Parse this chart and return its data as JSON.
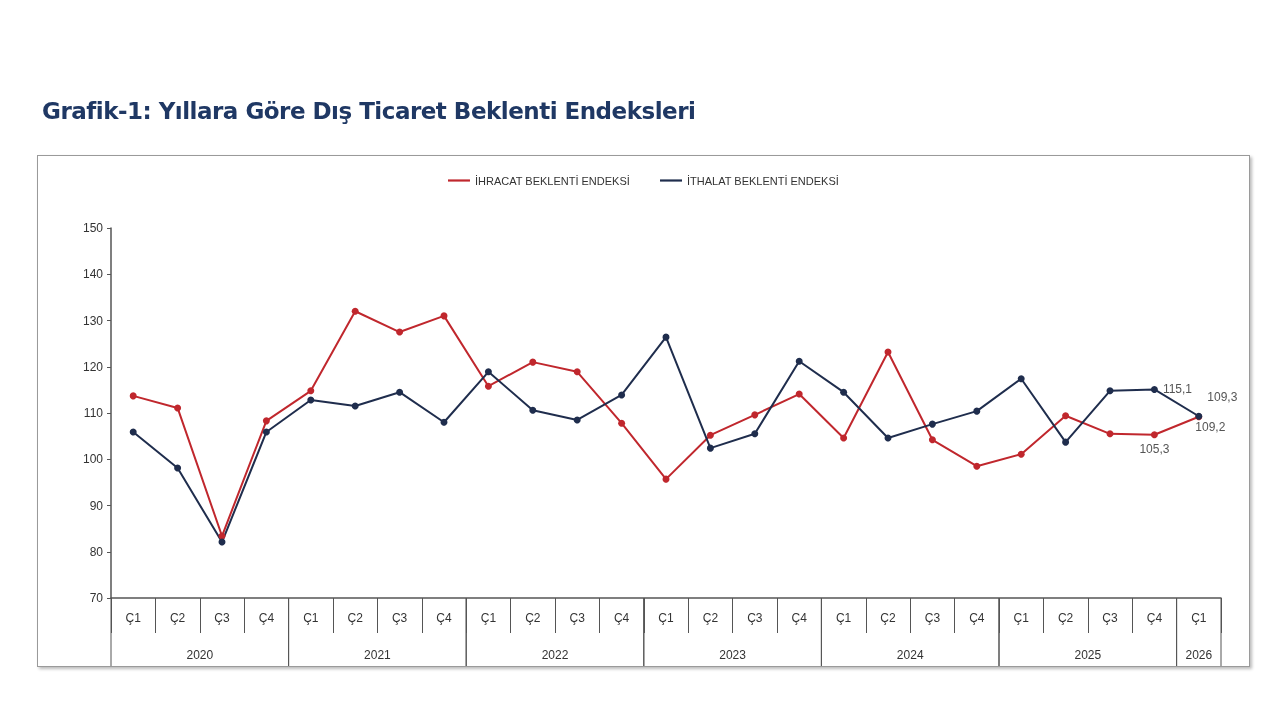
{
  "chart_data": {
    "type": "line",
    "title": "Grafik-1: Yıllara Göre Dış Ticaret Beklenti Endeksleri",
    "categories": [
      "Ç1",
      "Ç2",
      "Ç3",
      "Ç4",
      "Ç1",
      "Ç2",
      "Ç3",
      "Ç4",
      "Ç1",
      "Ç2",
      "Ç3",
      "Ç4",
      "Ç1",
      "Ç2",
      "Ç3",
      "Ç4",
      "Ç1",
      "Ç2",
      "Ç3",
      "Ç4",
      "Ç1",
      "Ç2",
      "Ç3",
      "Ç4",
      "Ç1"
    ],
    "annotations": [
      "2020",
      "2021",
      "2022",
      "2023",
      "2024",
      "2025",
      "2026"
    ],
    "series": [
      {
        "name": "İHRACAT BEKLENTİ ENDEKSİ",
        "color": "#c0272d",
        "values": [
          113.7,
          111.1,
          83.4,
          108.3,
          114.8,
          132,
          127.5,
          131,
          115.8,
          121,
          118.9,
          107.8,
          95.7,
          105.2,
          109.6,
          114.1,
          104.6,
          123.2,
          104.2,
          98.5,
          101.1,
          109.4,
          105.5,
          105.3,
          109.2
        ],
        "value_labels": [
          null,
          null,
          null,
          null,
          null,
          null,
          null,
          null,
          null,
          null,
          null,
          null,
          null,
          null,
          null,
          null,
          null,
          null,
          null,
          null,
          null,
          null,
          null,
          "105,3",
          "109,2"
        ]
      },
      {
        "name": "İTHALAT BEKLENTİ ENDEKSİ",
        "color": "#1f2d4d",
        "values": [
          105.9,
          98.1,
          82.1,
          105.9,
          112.8,
          111.5,
          114.5,
          108,
          118.9,
          110.6,
          108.5,
          113.9,
          126.4,
          102.4,
          105.5,
          121.2,
          114.5,
          104.6,
          107.6,
          110.4,
          117.4,
          103.7,
          114.8,
          115.1,
          109.3
        ],
        "value_labels": [
          null,
          null,
          null,
          null,
          null,
          null,
          null,
          null,
          null,
          null,
          null,
          null,
          null,
          null,
          null,
          null,
          null,
          null,
          null,
          null,
          null,
          null,
          null,
          "115,1",
          "109,3"
        ]
      }
    ],
    "ylim": [
      70,
      150
    ],
    "yticks": [
      70,
      80,
      90,
      100,
      110,
      120,
      130,
      140,
      150
    ],
    "grid": false,
    "legend": "top",
    "marker": "circle",
    "line_style": "solid"
  }
}
